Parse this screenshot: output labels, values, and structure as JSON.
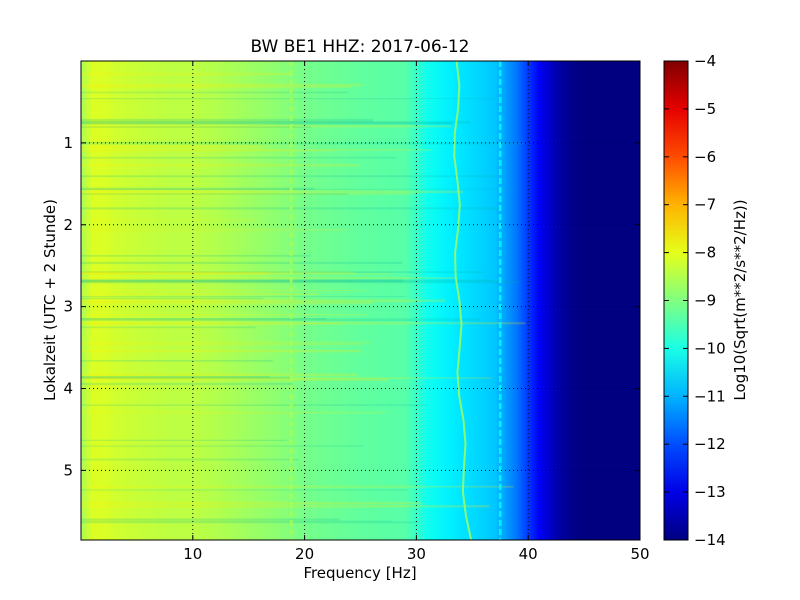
{
  "chart_data": {
    "type": "heatmap",
    "title": "BW BE1 HHZ: 2017-06-12",
    "xlabel": "Frequency [Hz]",
    "ylabel": "Lokalzeit (UTC + 2 Stunde)",
    "xlim": [
      0,
      50
    ],
    "ylim": [
      5.85,
      0
    ],
    "x_ticks": [
      10,
      20,
      30,
      40,
      50
    ],
    "y_ticks": [
      1,
      2,
      3,
      4,
      5
    ],
    "grid": true,
    "colormap": "jet",
    "colorbar": {
      "label": "Log10(Sqrt(m**2/s**2/Hz))",
      "range": [
        -14,
        -4
      ],
      "ticks": [
        -4,
        -5,
        -6,
        -7,
        -8,
        -9,
        -10,
        -11,
        -12,
        -13,
        -14
      ]
    },
    "spectrum_profile": {
      "frequency_hz": [
        0,
        1,
        2,
        3,
        5,
        8,
        10,
        12,
        15,
        18,
        20,
        25,
        29,
        30,
        31,
        33,
        35,
        37,
        38,
        39,
        40,
        41,
        42,
        43,
        44,
        45,
        50
      ],
      "log10_amplitude": [
        -8.6,
        -8.1,
        -8.1,
        -8.2,
        -8.3,
        -8.4,
        -8.4,
        -8.5,
        -8.7,
        -8.9,
        -9.1,
        -9.3,
        -9.4,
        -9.7,
        -10.1,
        -10.4,
        -10.6,
        -10.8,
        -11.2,
        -11.6,
        -12.2,
        -12.8,
        -13.3,
        -13.7,
        -13.9,
        -14,
        -14
      ]
    },
    "features": [
      {
        "type": "narrow-line",
        "frequency_hz": 18.8,
        "log10_amplitude": -8.6
      },
      {
        "type": "narrow-line",
        "frequency_hz": 37.5,
        "log10_amplitude": -10.3
      },
      {
        "type": "wandering-line",
        "frequency_hz_start": 33.6,
        "frequency_hz_end": 34.7,
        "log10_amplitude": -9.9
      }
    ]
  }
}
